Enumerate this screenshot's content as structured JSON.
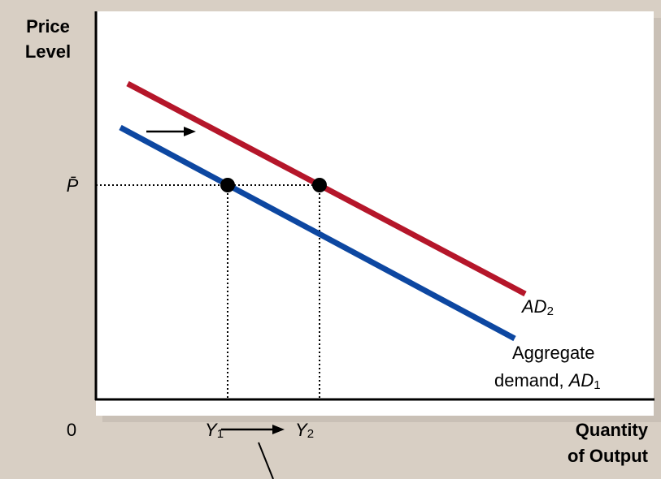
{
  "axes": {
    "y_label_line1": "Price",
    "y_label_line2": "Level",
    "x_label_line1": "Quantity",
    "x_label_line2": "of Output",
    "origin": "0"
  },
  "price_level": {
    "symbol": "P̄"
  },
  "curves": {
    "ad2": {
      "label_main": "AD",
      "label_sub": "2",
      "color": "#b5162a"
    },
    "ad1": {
      "label_line1": "Aggregate",
      "label_line2_prefix": "demand, ",
      "label_main": "AD",
      "label_sub": "1",
      "color": "#0d47a1"
    }
  },
  "output_levels": {
    "y1": {
      "main": "Y",
      "sub": "1"
    },
    "y2": {
      "main": "Y",
      "sub": "2"
    }
  },
  "colors": {
    "background": "#d8cfc4",
    "panel": "#ffffff",
    "points": "#000000"
  }
}
